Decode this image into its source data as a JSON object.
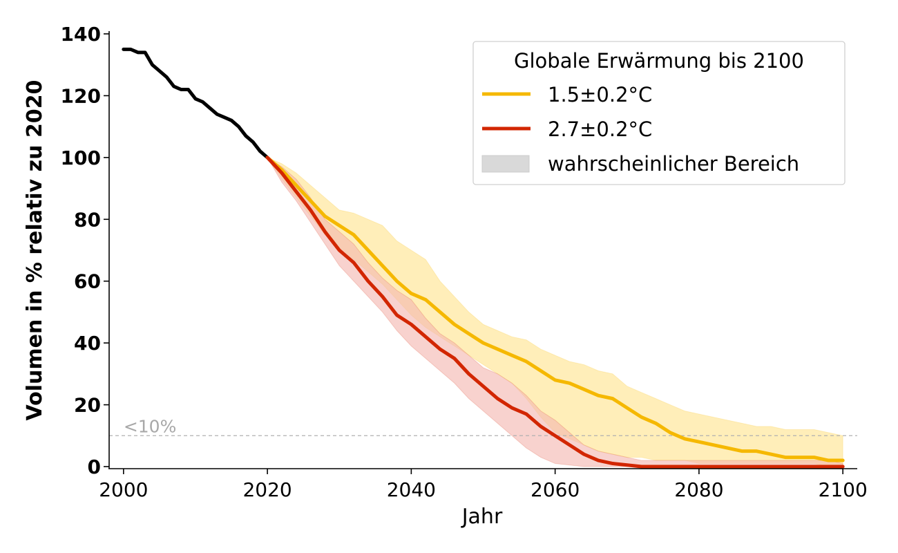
{
  "chart_data": {
    "type": "line",
    "title": "",
    "xlabel": "Jahr",
    "ylabel": "Volumen in % relativ zu 2020",
    "xlim": [
      1998,
      2102
    ],
    "ylim": [
      0,
      140
    ],
    "x_ticks": [
      "2000",
      "2020",
      "2040",
      "2060",
      "2080",
      "2100"
    ],
    "y_ticks": [
      "0",
      "20",
      "40",
      "60",
      "80",
      "100",
      "120",
      "140"
    ],
    "grid": false,
    "threshold": {
      "y": 10,
      "label": "<10%",
      "color": "#b0b0b0"
    },
    "legend": {
      "title": "Globale Erwärmung bis 2100",
      "placement": "top-right",
      "entries": [
        {
          "label": "1.5±0.2°C",
          "color": "#f5b800"
        },
        {
          "label": "2.7±0.2°C",
          "color": "#d22600"
        },
        {
          "label": "wahrscheinlicher Bereich",
          "color": "#d9d9d9"
        }
      ]
    },
    "series": [
      {
        "color": "#000000",
        "x": [
          2000,
          2001,
          2002,
          2003,
          2004,
          2005,
          2006,
          2007,
          2008,
          2009,
          2010,
          2011,
          2012,
          2013,
          2014,
          2015,
          2016,
          2017,
          2018,
          2019,
          2020
        ],
        "y": [
          135,
          135,
          134,
          134,
          130,
          128,
          126,
          123,
          122,
          122,
          119,
          118,
          116,
          114,
          113,
          112,
          110,
          107,
          105,
          102,
          100
        ]
      },
      {
        "label": "1.5±0.2°C",
        "color": "#f5b800",
        "band_color": "#ffeaa8",
        "x": [
          2020,
          2022,
          2024,
          2026,
          2028,
          2030,
          2032,
          2034,
          2036,
          2038,
          2040,
          2042,
          2044,
          2046,
          2048,
          2050,
          2052,
          2054,
          2056,
          2058,
          2060,
          2062,
          2064,
          2066,
          2068,
          2070,
          2072,
          2074,
          2076,
          2078,
          2080,
          2082,
          2084,
          2086,
          2088,
          2090,
          2092,
          2094,
          2096,
          2098,
          2100
        ],
        "y": [
          100,
          96,
          91,
          86,
          81,
          78,
          75,
          70,
          65,
          60,
          56,
          54,
          50,
          46,
          43,
          40,
          38,
          36,
          34,
          31,
          28,
          27,
          25,
          23,
          22,
          19,
          16,
          14,
          11,
          9,
          8,
          7,
          6,
          5,
          5,
          4,
          3,
          3,
          3,
          2,
          2
        ],
        "lower": [
          100,
          93,
          87,
          81,
          75,
          71,
          67,
          63,
          59,
          54,
          49,
          45,
          42,
          39,
          36,
          33,
          30,
          27,
          22,
          16,
          11,
          9,
          7,
          5,
          4,
          3,
          3,
          2,
          2,
          2,
          1,
          1,
          1,
          1,
          1,
          1,
          1,
          1,
          1,
          0,
          0
        ],
        "upper": [
          100,
          98,
          95,
          91,
          87,
          83,
          82,
          80,
          78,
          73,
          70,
          67,
          60,
          55,
          50,
          46,
          44,
          42,
          41,
          38,
          36,
          34,
          33,
          31,
          30,
          26,
          24,
          22,
          20,
          18,
          17,
          16,
          15,
          14,
          13,
          13,
          12,
          12,
          12,
          11,
          10
        ]
      },
      {
        "label": "2.7±0.2°C",
        "color": "#d22600",
        "band_color": "#f4b7b0",
        "x": [
          2020,
          2022,
          2024,
          2026,
          2028,
          2030,
          2032,
          2034,
          2036,
          2038,
          2040,
          2042,
          2044,
          2046,
          2048,
          2050,
          2052,
          2054,
          2056,
          2058,
          2060,
          2062,
          2064,
          2066,
          2068,
          2070,
          2072,
          2074,
          2076,
          2078,
          2080,
          2082,
          2084,
          2086,
          2088,
          2090,
          2092,
          2094,
          2096,
          2098,
          2100
        ],
        "y": [
          100,
          95,
          89,
          83,
          76,
          70,
          66,
          60,
          55,
          49,
          46,
          42,
          38,
          35,
          30,
          26,
          22,
          19,
          17,
          13,
          10,
          7,
          4,
          2,
          1,
          0.5,
          0,
          0,
          0,
          0,
          0,
          0,
          0,
          0,
          0,
          0,
          0,
          0,
          0,
          0,
          0
        ],
        "lower": [
          100,
          92,
          86,
          79,
          72,
          65,
          60,
          55,
          50,
          44,
          39,
          35,
          31,
          27,
          22,
          18,
          14,
          10,
          6,
          3,
          1,
          0.5,
          0,
          0,
          0,
          0,
          0,
          0,
          0,
          0,
          0,
          0,
          0,
          0,
          0,
          0,
          0,
          0,
          0,
          0,
          0
        ],
        "upper": [
          100,
          97,
          93,
          87,
          80,
          76,
          72,
          66,
          61,
          57,
          54,
          48,
          43,
          40,
          36,
          32,
          30,
          27,
          23,
          18,
          15,
          11,
          7,
          5,
          4,
          3,
          2,
          2,
          2,
          2,
          2,
          2,
          2,
          2,
          2,
          2,
          2,
          2,
          2,
          2,
          1
        ]
      }
    ]
  }
}
